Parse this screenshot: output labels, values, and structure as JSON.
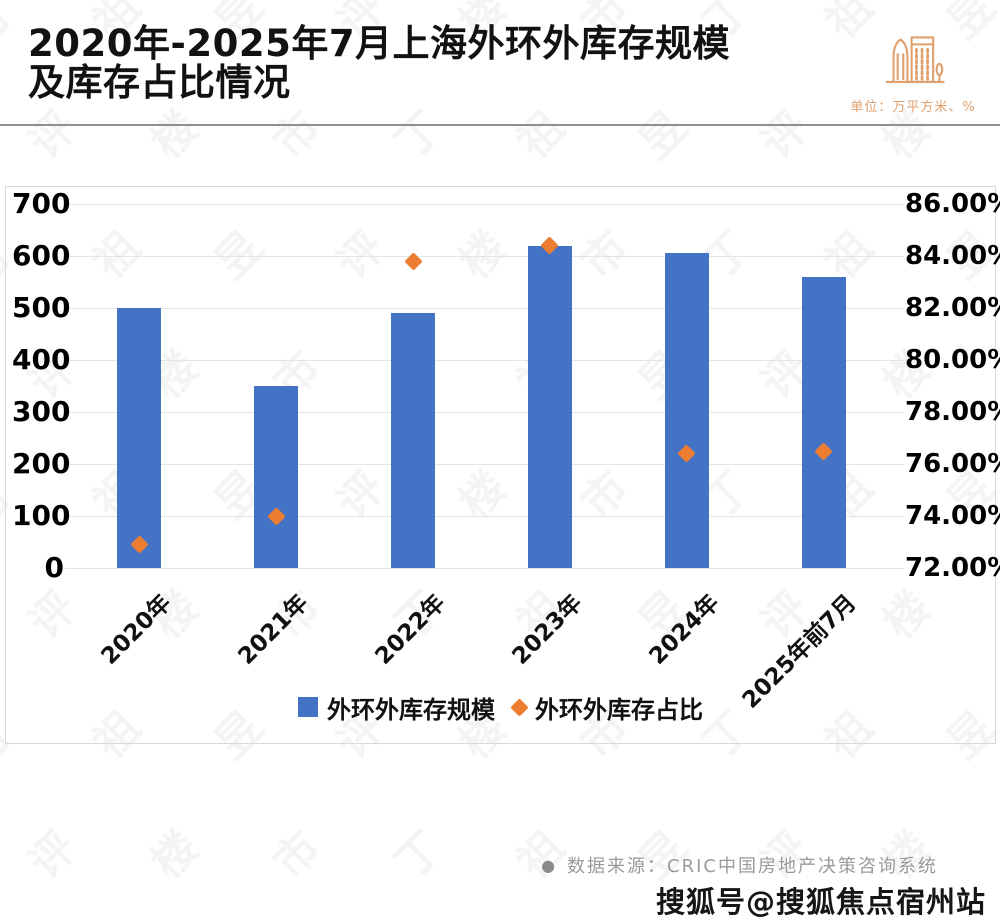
{
  "header": {
    "title_line1": "2020年-2025年7月上海外环外库存规模",
    "title_line2": "及库存占比情况",
    "unit_label": "单位：万平方米、%"
  },
  "chart_data": {
    "type": "bar",
    "title": "2020年-2025年7月上海外环外库存规模及库存占比情况",
    "categories": [
      "2020年",
      "2021年",
      "2022年",
      "2023年",
      "2024年",
      "2025年前7月"
    ],
    "series": [
      {
        "name": "外环外库存规模",
        "type": "bar",
        "axis": "left",
        "color": "#4472C4",
        "values": [
          500,
          350,
          490,
          620,
          605,
          560
        ]
      },
      {
        "name": "外环外库存占比",
        "type": "scatter",
        "marker": "diamond",
        "axis": "right",
        "color": "#ED7D31",
        "values": [
          72.9,
          74.0,
          83.8,
          84.4,
          76.4,
          76.5
        ]
      }
    ],
    "left_axis": {
      "min": 0,
      "max": 700,
      "step": 100,
      "unit": "万平方米"
    },
    "right_axis": {
      "min": 72,
      "max": 86,
      "step": 2,
      "unit": "%",
      "tick_suffix": "%",
      "decimals": 2
    },
    "grid": true,
    "legend_position": "bottom"
  },
  "footer": {
    "source_bullet": "●",
    "source": "数据来源：CRIC中国房地产决策咨询系统",
    "social": "搜狐号@搜狐焦点宿州站"
  },
  "watermark": {
    "text": "丁祖昱评楼市"
  },
  "colors": {
    "bar": "#4472C4",
    "marker": "#ED7D31",
    "accent": "#DFA06E",
    "grid": "#E4E4E4"
  }
}
